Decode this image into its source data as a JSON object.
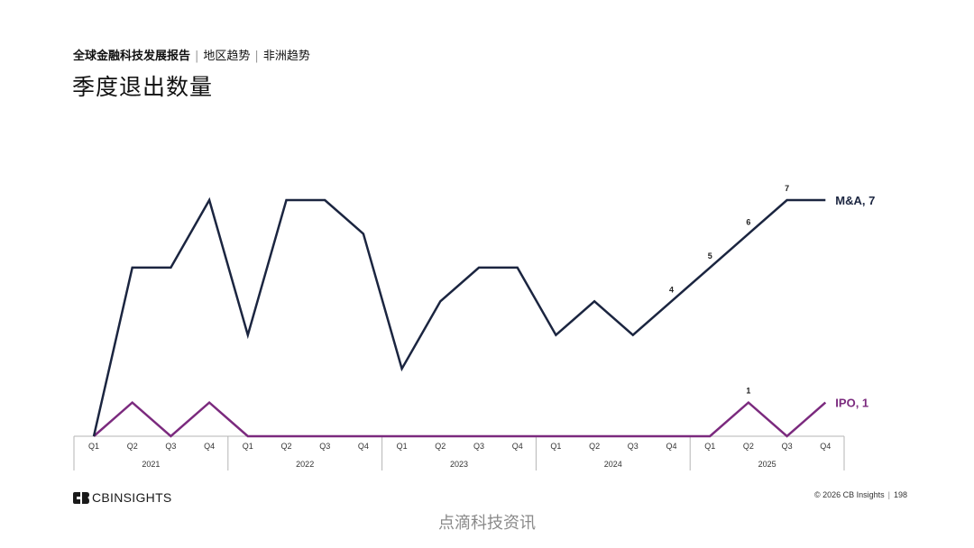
{
  "breadcrumb": {
    "report": "全球金融科技发展报告",
    "region": "地区趋势",
    "area": "非洲趋势"
  },
  "title": "季度退出数量",
  "footer": {
    "brand": "CBINSIGHTS",
    "copyright": "© 2026 CB Insights",
    "page": "198"
  },
  "watermark": "点滴科技资讯",
  "colors": {
    "ma": "#1b2540",
    "ipo": "#7b2a7e",
    "axis": "#b5b5b5"
  },
  "chart_data": {
    "type": "line",
    "ylim": [
      0,
      7
    ],
    "quarters": [
      "Q1",
      "Q2",
      "Q3",
      "Q4",
      "Q1",
      "Q2",
      "Q3",
      "Q4",
      "Q1",
      "Q2",
      "Q3",
      "Q4",
      "Q1",
      "Q2",
      "Q3",
      "Q4",
      "Q1",
      "Q2",
      "Q3",
      "Q4"
    ],
    "years": [
      "2021",
      "2022",
      "2023",
      "2024",
      "2025"
    ],
    "series": [
      {
        "key": "ma",
        "end_label": "M&A, 7",
        "values": [
          0,
          5,
          5,
          7,
          3,
          7,
          7,
          6,
          2,
          4,
          5,
          5,
          3,
          4,
          3,
          4,
          5,
          6,
          7,
          7
        ],
        "data_labels": [
          {
            "index": 15,
            "text": "4"
          },
          {
            "index": 16,
            "text": "5"
          },
          {
            "index": 17,
            "text": "6"
          },
          {
            "index": 18,
            "text": "7"
          }
        ]
      },
      {
        "key": "ipo",
        "end_label": "IPO, 1",
        "values": [
          0,
          1,
          0,
          1,
          0,
          0,
          0,
          0,
          0,
          0,
          0,
          0,
          0,
          0,
          0,
          0,
          0,
          1,
          0,
          1
        ],
        "data_labels": [
          {
            "index": 17,
            "text": "1"
          }
        ]
      }
    ]
  }
}
